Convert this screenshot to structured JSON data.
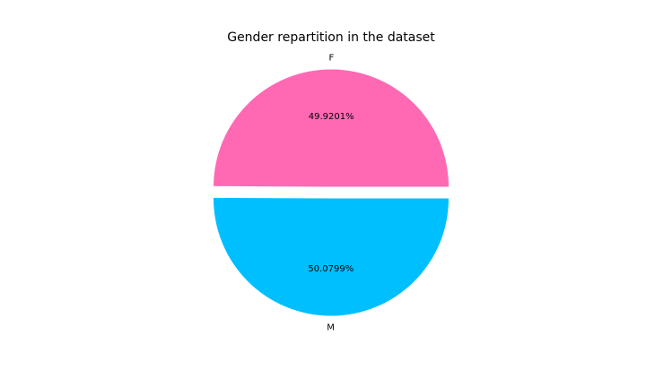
{
  "chart_data": {
    "type": "pie",
    "title": "Gender repartition in the dataset",
    "labels": [
      "F",
      "M"
    ],
    "values": [
      49.9201,
      50.0799
    ],
    "percent_labels": [
      "49.9201%",
      "50.0799%"
    ],
    "colors": [
      "#ff69b4",
      "#00bfff"
    ],
    "explode": [
      0.05,
      0.05
    ],
    "start_angle_deg": 0,
    "direction": "counterclockwise",
    "legend": "none",
    "grid": false
  }
}
